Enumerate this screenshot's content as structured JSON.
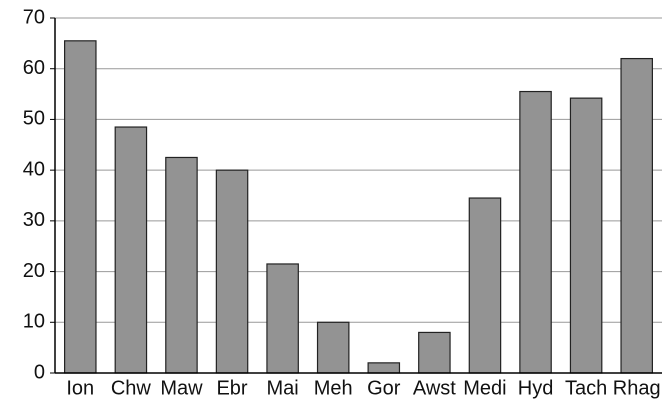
{
  "chart_data": {
    "type": "bar",
    "categories": [
      "Ion",
      "Chw",
      "Maw",
      "Ebr",
      "Mai",
      "Meh",
      "Gor",
      "Awst",
      "Medi",
      "Hyd",
      "Tach",
      "Rhag"
    ],
    "values": [
      65.5,
      48.5,
      42.5,
      40,
      21.5,
      10,
      2,
      8,
      34.5,
      55.5,
      54.2,
      62
    ],
    "color": "#939393",
    "ylim": [
      0,
      70
    ],
    "yticks": [
      0,
      10,
      20,
      30,
      40,
      50,
      60,
      70
    ],
    "grid": true
  }
}
